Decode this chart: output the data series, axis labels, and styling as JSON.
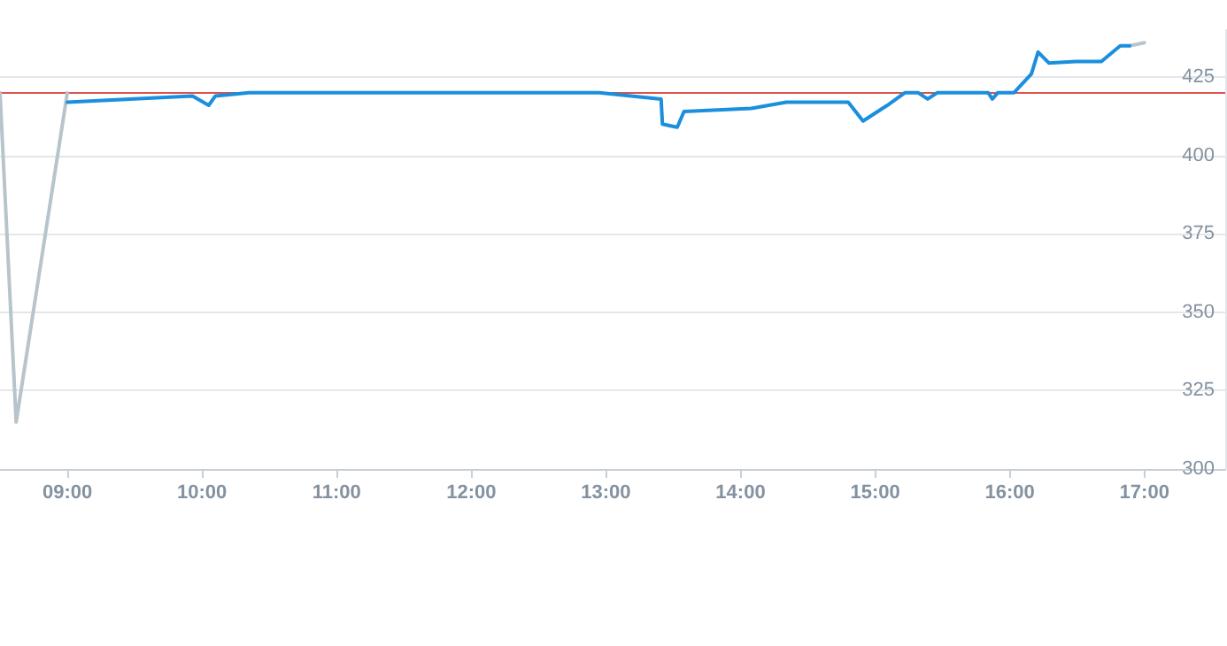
{
  "chart_data": {
    "type": "line",
    "xlim": [
      8.5,
      17.6
    ],
    "ylim": [
      300,
      440
    ],
    "xticks": [
      {
        "value": 9,
        "label": "09:00"
      },
      {
        "value": 10,
        "label": "10:00"
      },
      {
        "value": 11,
        "label": "11:00"
      },
      {
        "value": 12,
        "label": "12:00"
      },
      {
        "value": 13,
        "label": "13:00"
      },
      {
        "value": 14,
        "label": "14:00"
      },
      {
        "value": 15,
        "label": "15:00"
      },
      {
        "value": 16,
        "label": "16:00"
      },
      {
        "value": 17,
        "label": "17:00"
      }
    ],
    "yticks": [
      300,
      325,
      350,
      375,
      400,
      425
    ],
    "grid": "y",
    "marker": "none",
    "line_style": "solid",
    "ref_lines": [
      {
        "axis": "y",
        "value": 420,
        "color": "#d9534f"
      }
    ],
    "series": [
      {
        "color": "#b7c4cc",
        "x": [
          8.5,
          8.62,
          9.0
        ],
        "values": [
          420,
          315,
          420
        ]
      },
      {
        "color": "#b7c4cc",
        "x": [
          16.89,
          17.0
        ],
        "values": [
          435,
          436
        ]
      },
      {
        "color": "#1a8fdd",
        "x": [
          9.0,
          9.93,
          10.05,
          10.1,
          10.35,
          12.95,
          13.41,
          13.42,
          13.53,
          13.58,
          14.08,
          14.34,
          14.8,
          14.91,
          15.09,
          15.22,
          15.32,
          15.39,
          15.46,
          15.84,
          15.87,
          15.91,
          16.03,
          16.16,
          16.21,
          16.29,
          16.49,
          16.68,
          16.82,
          16.89
        ],
        "values": [
          417,
          419,
          416,
          419,
          420,
          420,
          418,
          410,
          409,
          414,
          415,
          417,
          417,
          411,
          416,
          420,
          420,
          418,
          420,
          420,
          418,
          420,
          420,
          426,
          433,
          429.5,
          430,
          430,
          435,
          435
        ]
      }
    ]
  }
}
